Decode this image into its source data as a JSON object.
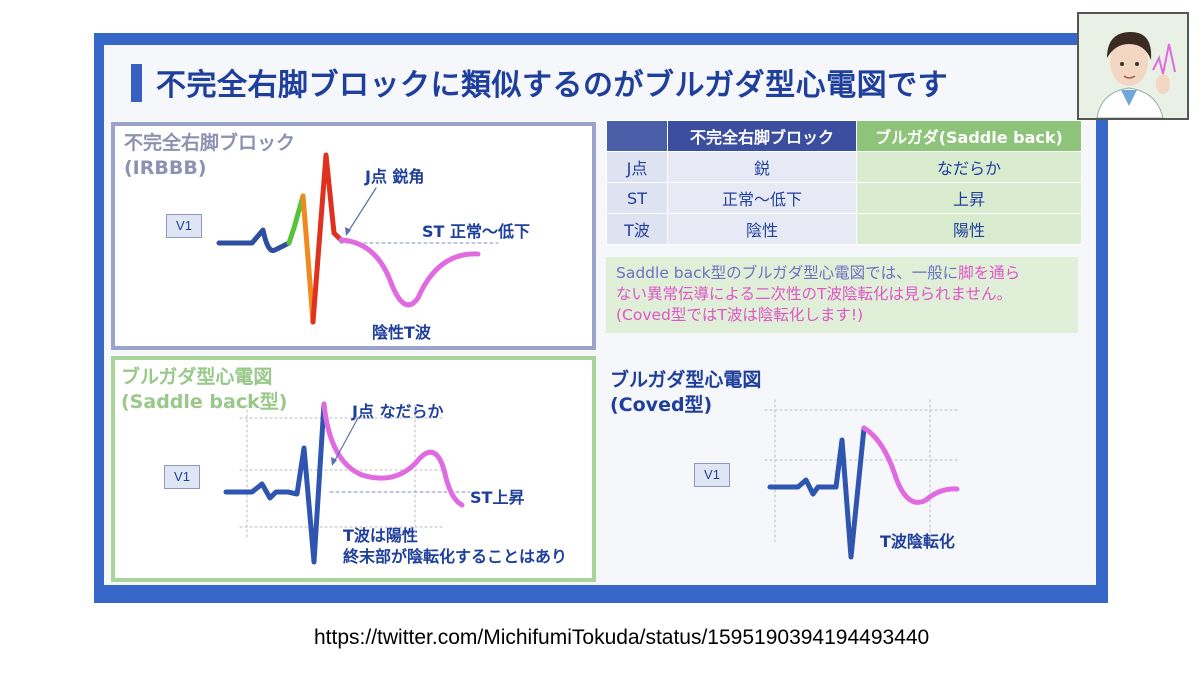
{
  "slide": {
    "title": "不完全右脚ブロックに類似するのがブルガダ型心電図です"
  },
  "irbbb": {
    "title_line1": "不完全右脚ブロック",
    "title_line2": "(IRBBB)",
    "lead": "V1",
    "j_point": "J点 鋭角",
    "st": "ST 正常〜低下",
    "t_wave": "陰性T波"
  },
  "saddle": {
    "title_line1": "ブルガダ型心電図",
    "title_line2": "(Saddle back型)",
    "lead": "V1",
    "j_point": "J点 なだらか",
    "st": "ST上昇",
    "t_note1": "T波は陽性",
    "t_note2": "終末部が陰転化することはあり"
  },
  "coved": {
    "title_line1": "ブルガダ型心電図",
    "title_line2": "(Coved型)",
    "lead": "V1",
    "t_wave": "T波陰転化"
  },
  "table": {
    "headers": [
      "",
      "不完全右脚ブロック",
      "ブルガダ(Saddle back)"
    ],
    "rows": [
      {
        "label": "J点",
        "irbbb": "鋭",
        "brugada": "なだらか"
      },
      {
        "label": "ST",
        "irbbb": "正常〜低下",
        "brugada": "上昇"
      },
      {
        "label": "T波",
        "irbbb": "陰性",
        "brugada": "陽性"
      }
    ]
  },
  "note": {
    "part1": "Saddle back型のブルガダ型心電図では、一般に",
    "part2": "脚を通ら",
    "part3": "ない異常伝導による二次性のT波陰転化は見られません。",
    "part4": "(Coved型ではT波は陰転化します!)"
  },
  "source_url": "https://twitter.com/MichifumiTokuda/status/1595190394194493440",
  "colors": {
    "frame": "#3566c8",
    "title": "#1f3f9c",
    "ecg_blue": "#2e56b0",
    "ecg_green": "#55c43a",
    "ecg_red": "#e0301e",
    "ecg_orange": "#ef8a1e",
    "ecg_pink": "#e06ae0"
  },
  "icons": {
    "avatar": "doctor-avatar-icon"
  }
}
